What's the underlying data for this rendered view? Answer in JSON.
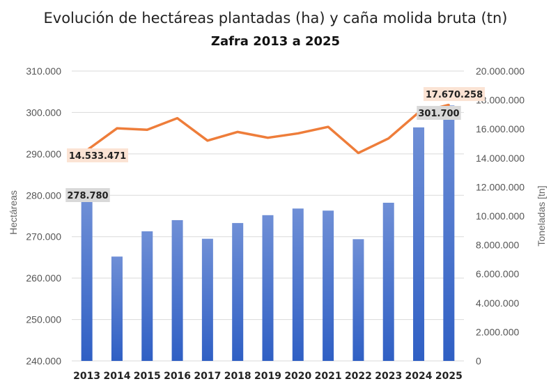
{
  "chart_data": {
    "type": "bar+line",
    "title": "Evolución de hectáreas plantadas (ha) y caña molida bruta (tn)",
    "subtitle": "Zafra 2013 a 2025",
    "categories": [
      "2013",
      "2014",
      "2015",
      "2016",
      "2017",
      "2018",
      "2019",
      "2020",
      "2021",
      "2022",
      "2023",
      "2024",
      "2025"
    ],
    "series": [
      {
        "name": "Hectáreas",
        "type": "bar",
        "axis": "left",
        "values": [
          278780,
          265200,
          271300,
          274000,
          269500,
          273300,
          275200,
          276800,
          276300,
          269400,
          278200,
          296400,
          301700
        ]
      },
      {
        "name": "Toneladas",
        "type": "line",
        "axis": "right",
        "values": [
          14533471,
          16050000,
          15950000,
          16750000,
          15200000,
          15800000,
          15400000,
          15700000,
          16150000,
          14350000,
          15350000,
          17150000,
          17670258
        ]
      }
    ],
    "ylabel": "Hectáreas",
    "y2label": "Toneladas [tn]",
    "ylim": [
      240000,
      310000
    ],
    "y2lim": [
      0,
      20000000
    ],
    "yticks": [
      "240.000",
      "250.000",
      "260.000",
      "270.000",
      "280.000",
      "290.000",
      "300.000",
      "310.000"
    ],
    "y2ticks": [
      "0",
      "2.000.000",
      "4.000.000",
      "6.000.000",
      "8.000.000",
      "10.000.000",
      "12.000.000",
      "14.000.000",
      "16.000.000",
      "18.000.000",
      "20.000.000"
    ],
    "data_labels": {
      "bar_first": "278.780",
      "bar_last": "301.700",
      "line_first": "14.533.471",
      "line_last": "17.670.258"
    },
    "grid": true,
    "colors": {
      "bar_top": "#6f8fd6",
      "bar_bottom": "#2f5fc4",
      "line": "#ee7d3a",
      "bar_label_bg": "#d9d9d9",
      "line_label_bg": "#fbe3d4"
    }
  }
}
